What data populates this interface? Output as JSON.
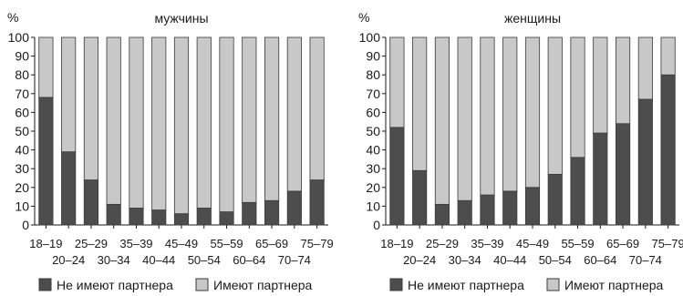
{
  "chart_data": [
    {
      "type": "bar",
      "stacked": true,
      "title": "мужчины",
      "ylabel": "%",
      "xlabel": "",
      "ylim": [
        0,
        100
      ],
      "yticks": [
        0,
        10,
        20,
        30,
        40,
        50,
        60,
        70,
        80,
        90,
        100
      ],
      "grid": false,
      "categories": [
        "18–19",
        "20–24",
        "25–29",
        "30–34",
        "35–39",
        "40–44",
        "45–49",
        "50–54",
        "55–59",
        "60–64",
        "65–69",
        "70–74",
        "75–79"
      ],
      "series": [
        {
          "name": "Не имеют партнера",
          "color": "#4d4d4d",
          "values": [
            68,
            39,
            24,
            11,
            9,
            8,
            6,
            9,
            7,
            12,
            13,
            18,
            24
          ]
        },
        {
          "name": "Имеют партнера",
          "color": "#c8c8c8",
          "values": [
            32,
            61,
            76,
            89,
            91,
            92,
            94,
            91,
            93,
            88,
            87,
            82,
            76
          ]
        }
      ]
    },
    {
      "type": "bar",
      "stacked": true,
      "title": "женщины",
      "ylabel": "%",
      "xlabel": "",
      "ylim": [
        0,
        100
      ],
      "yticks": [
        0,
        10,
        20,
        30,
        40,
        50,
        60,
        70,
        80,
        90,
        100
      ],
      "grid": false,
      "categories": [
        "18–19",
        "20–24",
        "25–29",
        "30–34",
        "35–39",
        "40–44",
        "45–49",
        "50–54",
        "55–59",
        "60–64",
        "65–69",
        "70–74",
        "75–79"
      ],
      "series": [
        {
          "name": "Не имеют партнера",
          "color": "#4d4d4d",
          "values": [
            52,
            29,
            11,
            13,
            16,
            18,
            20,
            27,
            36,
            49,
            54,
            67,
            80
          ]
        },
        {
          "name": "Имеют партнера",
          "color": "#c8c8c8",
          "values": [
            48,
            71,
            89,
            87,
            84,
            82,
            80,
            73,
            64,
            51,
            46,
            33,
            20
          ]
        }
      ]
    }
  ]
}
